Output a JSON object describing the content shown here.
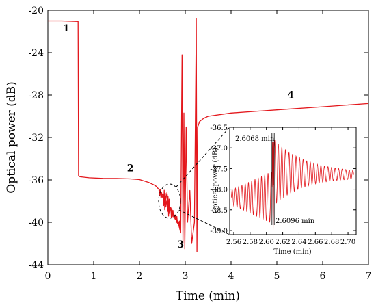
{
  "chart_data": [
    {
      "type": "line",
      "title": "",
      "xlabel": "Time (min)",
      "ylabel": "Optical power (dB)",
      "xlim": [
        0,
        7
      ],
      "ylim": [
        -44,
        -20
      ],
      "xticks": [
        0,
        1,
        2,
        3,
        4,
        5,
        6,
        7
      ],
      "yticks": [
        -44,
        -40,
        -36,
        -32,
        -28,
        -24,
        -20
      ],
      "grid": false,
      "line_color": "#e3171c",
      "series": [
        {
          "x": [
            0,
            0.3,
            0.66,
            0.67,
            0.7,
            0.9,
            1.2,
            1.5,
            1.8,
            2.0,
            2.2,
            2.35,
            2.45,
            2.52,
            2.56,
            2.6,
            2.65,
            2.7,
            2.75,
            2.8,
            2.86,
            2.9,
            2.93,
            2.95,
            2.97,
            2.99,
            3.02,
            3.05,
            3.1,
            3.14,
            3.17,
            3.2,
            3.22,
            3.24,
            3.255,
            3.27,
            3.29,
            3.31,
            3.4,
            3.5,
            4.0,
            5.0,
            6.0,
            7.0
          ],
          "y": [
            -21.0,
            -21.0,
            -21.05,
            -35.6,
            -35.7,
            -35.8,
            -35.85,
            -35.9,
            -35.95,
            -35.98,
            -36.2,
            -36.5,
            -37.0,
            -37.5,
            -38.3,
            -37.2,
            -38.9,
            -38.7,
            -39.5,
            -39.8,
            -40.3,
            -41.0,
            -24.2,
            -42.0,
            -29.7,
            -42.5,
            -31.0,
            -40.0,
            -37.0,
            -42.0,
            -41.0,
            -40.0,
            -31.0,
            -20.8,
            -42.8,
            -31.0,
            -30.8,
            -30.5,
            -30.2,
            -30.0,
            -29.7,
            -29.4,
            -29.1,
            -28.8
          ]
        }
      ],
      "annotations": [
        {
          "text": "1",
          "x": 0.4,
          "y": -22.0
        },
        {
          "text": "2",
          "x": 1.8,
          "y": -35.2
        },
        {
          "text": "3",
          "x": 2.9,
          "y": -42.4
        },
        {
          "text": "4",
          "x": 5.3,
          "y": -28.3
        }
      ]
    },
    {
      "type": "line",
      "title": "",
      "xlabel": "Time (min)",
      "ylabel": "Optical power (dB)",
      "xlim": [
        2.555,
        2.71
      ],
      "ylim": [
        -39.1,
        -36.5
      ],
      "xticks": [
        2.56,
        2.58,
        2.6,
        2.62,
        2.64,
        2.66,
        2.68,
        2.7
      ],
      "yticks": [
        -39.0,
        -38.5,
        -38.0,
        -37.5,
        -37.0,
        -36.5
      ],
      "line_color": "#e3171c",
      "annotations": [
        {
          "text": "2.6068 min",
          "x": 2.6068
        },
        {
          "text": "2.6096 min",
          "x": 2.6096
        }
      ]
    }
  ]
}
